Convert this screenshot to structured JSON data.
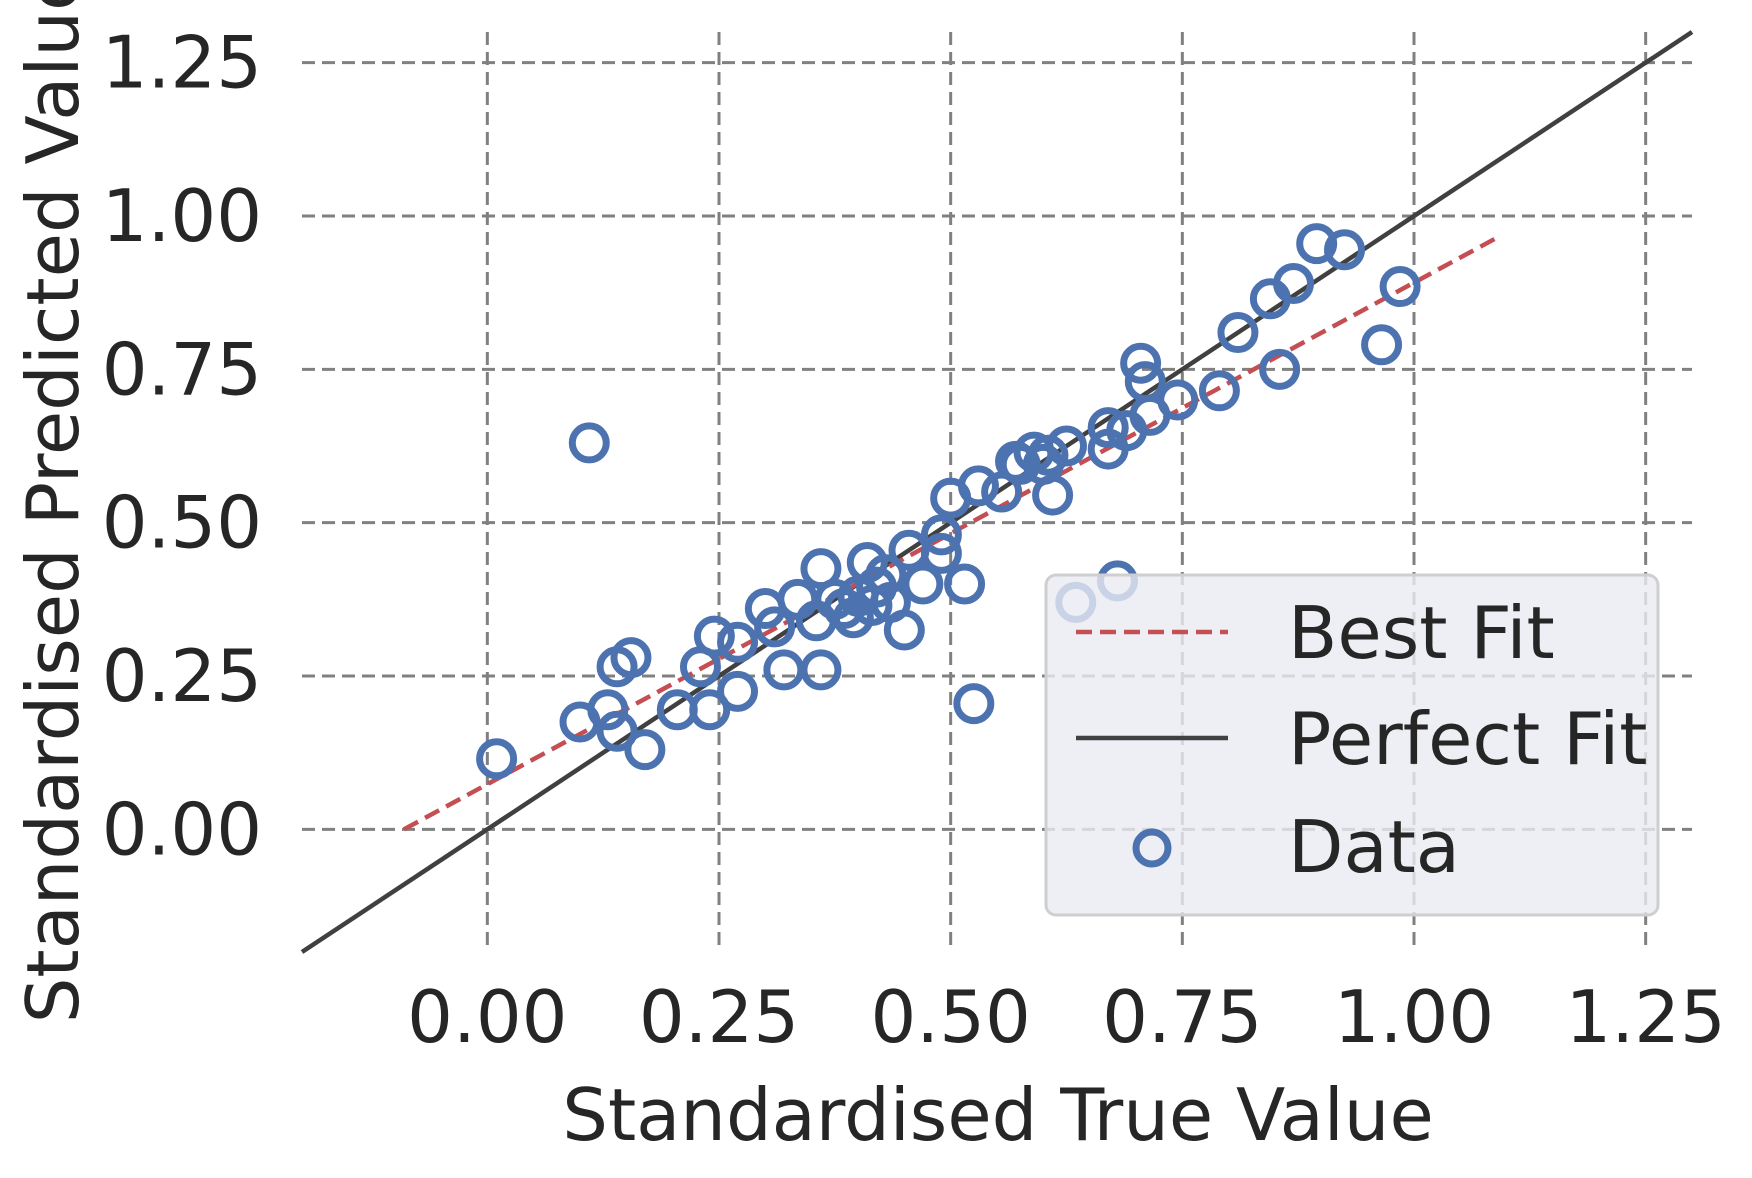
{
  "chart_data": {
    "type": "scatter",
    "xlabel": "Standardised True Value",
    "ylabel": "Standardised Predicted Value",
    "xlim": [
      -0.2,
      1.3
    ],
    "ylim": [
      -0.2,
      1.3
    ],
    "xticks": [
      "0.00",
      "0.25",
      "0.50",
      "0.75",
      "1.00",
      "1.25"
    ],
    "yticks": [
      "0.00",
      "0.25",
      "0.50",
      "0.75",
      "1.00",
      "1.25"
    ],
    "grid": true,
    "legend_position": "lower-right",
    "legend": [
      {
        "label": "Best Fit",
        "kind": "dashed-line",
        "color": "#c44e52"
      },
      {
        "label": "Perfect Fit",
        "kind": "solid-line",
        "color": "#404040"
      },
      {
        "label": "Data",
        "kind": "hollow-circle",
        "color": "#4c72b0"
      }
    ],
    "perfect_fit": {
      "x": [
        -0.2,
        1.3
      ],
      "y": [
        -0.2,
        1.3
      ]
    },
    "best_fit": {
      "x": [
        -0.09,
        1.09
      ],
      "y": [
        0.0,
        0.965
      ]
    },
    "series": [
      {
        "name": "Data",
        "points": [
          [
            0.01,
            0.115
          ],
          [
            0.11,
            0.63
          ],
          [
            0.1,
            0.175
          ],
          [
            0.13,
            0.195
          ],
          [
            0.14,
            0.16
          ],
          [
            0.17,
            0.13
          ],
          [
            0.14,
            0.265
          ],
          [
            0.155,
            0.28
          ],
          [
            0.205,
            0.195
          ],
          [
            0.24,
            0.195
          ],
          [
            0.23,
            0.265
          ],
          [
            0.245,
            0.315
          ],
          [
            0.27,
            0.305
          ],
          [
            0.27,
            0.225
          ],
          [
            0.3,
            0.36
          ],
          [
            0.31,
            0.33
          ],
          [
            0.32,
            0.26
          ],
          [
            0.335,
            0.375
          ],
          [
            0.36,
            0.26
          ],
          [
            0.355,
            0.34
          ],
          [
            0.36,
            0.425
          ],
          [
            0.375,
            0.375
          ],
          [
            0.385,
            0.36
          ],
          [
            0.395,
            0.345
          ],
          [
            0.4,
            0.38
          ],
          [
            0.41,
            0.435
          ],
          [
            0.415,
            0.365
          ],
          [
            0.42,
            0.395
          ],
          [
            0.43,
            0.415
          ],
          [
            0.435,
            0.37
          ],
          [
            0.45,
            0.325
          ],
          [
            0.455,
            0.455
          ],
          [
            0.47,
            0.4
          ],
          [
            0.49,
            0.45
          ],
          [
            0.49,
            0.48
          ],
          [
            0.5,
            0.54
          ],
          [
            0.515,
            0.4
          ],
          [
            0.525,
            0.205
          ],
          [
            0.53,
            0.56
          ],
          [
            0.555,
            0.55
          ],
          [
            0.57,
            0.6
          ],
          [
            0.575,
            0.595
          ],
          [
            0.59,
            0.615
          ],
          [
            0.6,
            0.595
          ],
          [
            0.605,
            0.61
          ],
          [
            0.61,
            0.545
          ],
          [
            0.625,
            0.625
          ],
          [
            0.635,
            0.37
          ],
          [
            0.67,
            0.62
          ],
          [
            0.67,
            0.655
          ],
          [
            0.68,
            0.405
          ],
          [
            0.69,
            0.65
          ],
          [
            0.705,
            0.76
          ],
          [
            0.71,
            0.73
          ],
          [
            0.715,
            0.675
          ],
          [
            0.745,
            0.7
          ],
          [
            0.79,
            0.715
          ],
          [
            0.81,
            0.81
          ],
          [
            0.845,
            0.865
          ],
          [
            0.855,
            0.75
          ],
          [
            0.87,
            0.89
          ],
          [
            0.895,
            0.955
          ],
          [
            0.925,
            0.945
          ],
          [
            0.965,
            0.79
          ],
          [
            0.985,
            0.885
          ]
        ]
      }
    ]
  }
}
